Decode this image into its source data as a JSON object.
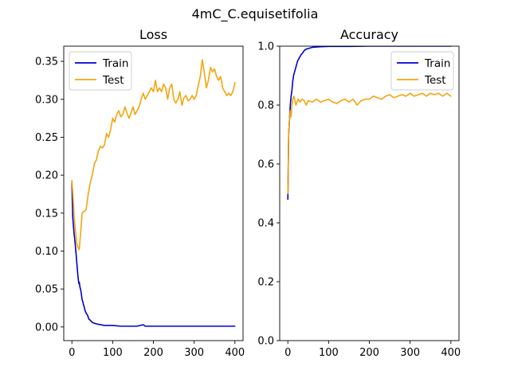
{
  "figure": {
    "suptitle": "4mC_C.equisetifolia"
  },
  "chart_data": [
    {
      "type": "line",
      "title": "Loss",
      "xlabel": "",
      "ylabel": "",
      "xlim": [
        -20,
        420
      ],
      "ylim": [
        -0.018,
        0.37
      ],
      "xticks": [
        0,
        100,
        200,
        300,
        400
      ],
      "yticks": [
        0.0,
        0.05,
        0.1,
        0.15,
        0.2,
        0.25,
        0.3,
        0.35
      ],
      "ytick_labels": [
        "0.00",
        "0.05",
        "0.10",
        "0.15",
        "0.20",
        "0.25",
        "0.30",
        "0.35"
      ],
      "legend": "upper-left",
      "grid": false,
      "series": [
        {
          "name": "Train",
          "color": "#0000cd",
          "x": [
            0,
            2,
            5,
            8,
            10,
            12,
            14,
            15,
            17,
            18,
            20,
            22,
            24,
            25,
            27,
            28,
            30,
            32,
            35,
            38,
            40,
            42,
            45,
            48,
            50,
            55,
            60,
            70,
            80,
            90,
            100,
            120,
            140,
            160,
            175,
            180,
            200,
            220,
            240,
            260,
            280,
            300,
            320,
            340,
            360,
            380,
            400
          ],
          "y": [
            0.19,
            0.145,
            0.125,
            0.11,
            0.098,
            0.085,
            0.072,
            0.066,
            0.057,
            0.059,
            0.052,
            0.048,
            0.04,
            0.036,
            0.033,
            0.03,
            0.027,
            0.022,
            0.018,
            0.016,
            0.013,
            0.01,
            0.009,
            0.007,
            0.006,
            0.005,
            0.004,
            0.003,
            0.002,
            0.002,
            0.002,
            0.001,
            0.001,
            0.001,
            0.003,
            0.001,
            0.001,
            0.001,
            0.001,
            0.001,
            0.001,
            0.001,
            0.001,
            0.001,
            0.001,
            0.001,
            0.001
          ]
        },
        {
          "name": "Test",
          "color": "#f4a40e",
          "x": [
            0,
            3,
            5,
            8,
            10,
            12,
            15,
            18,
            20,
            23,
            25,
            28,
            30,
            35,
            40,
            45,
            50,
            55,
            60,
            65,
            70,
            75,
            80,
            85,
            90,
            95,
            100,
            105,
            110,
            115,
            120,
            125,
            130,
            135,
            140,
            145,
            150,
            155,
            160,
            165,
            170,
            175,
            180,
            185,
            190,
            195,
            200,
            205,
            210,
            215,
            220,
            225,
            230,
            235,
            240,
            245,
            250,
            255,
            260,
            265,
            270,
            275,
            280,
            285,
            290,
            295,
            300,
            305,
            310,
            315,
            320,
            325,
            330,
            335,
            340,
            345,
            350,
            355,
            360,
            365,
            370,
            375,
            380,
            385,
            390,
            395,
            400
          ],
          "y": [
            0.193,
            0.17,
            0.15,
            0.13,
            0.12,
            0.11,
            0.105,
            0.102,
            0.115,
            0.135,
            0.15,
            0.152,
            0.152,
            0.155,
            0.175,
            0.19,
            0.2,
            0.215,
            0.22,
            0.232,
            0.238,
            0.236,
            0.24,
            0.255,
            0.25,
            0.26,
            0.275,
            0.27,
            0.28,
            0.285,
            0.277,
            0.28,
            0.29,
            0.282,
            0.275,
            0.282,
            0.29,
            0.28,
            0.285,
            0.29,
            0.3,
            0.308,
            0.3,
            0.305,
            0.31,
            0.315,
            0.31,
            0.325,
            0.31,
            0.315,
            0.31,
            0.32,
            0.315,
            0.3,
            0.315,
            0.32,
            0.3,
            0.295,
            0.3,
            0.31,
            0.292,
            0.302,
            0.305,
            0.298,
            0.3,
            0.305,
            0.3,
            0.305,
            0.318,
            0.33,
            0.352,
            0.335,
            0.315,
            0.325,
            0.342,
            0.336,
            0.34,
            0.33,
            0.325,
            0.33,
            0.315,
            0.31,
            0.305,
            0.308,
            0.305,
            0.31,
            0.322
          ]
        }
      ]
    },
    {
      "type": "line",
      "title": "Accuracy",
      "xlabel": "",
      "ylabel": "",
      "xlim": [
        -20,
        420
      ],
      "ylim": [
        0.0,
        1.0
      ],
      "xticks": [
        0,
        100,
        200,
        300,
        400
      ],
      "yticks": [
        0.0,
        0.2,
        0.4,
        0.6,
        0.8,
        1.0
      ],
      "ytick_labels": [
        "0.0",
        "0.2",
        "0.4",
        "0.6",
        "0.8",
        "1.0"
      ],
      "legend": "upper-right",
      "grid": false,
      "series": [
        {
          "name": "Train",
          "color": "#0000cd",
          "x": [
            0,
            2,
            4,
            6,
            8,
            10,
            12,
            14,
            16,
            18,
            20,
            22,
            24,
            26,
            28,
            30,
            32,
            35,
            38,
            40,
            45,
            50,
            55,
            60,
            70,
            80,
            100,
            120,
            150,
            200,
            250,
            300,
            350,
            400
          ],
          "y": [
            0.48,
            0.7,
            0.75,
            0.8,
            0.83,
            0.85,
            0.88,
            0.9,
            0.91,
            0.92,
            0.93,
            0.94,
            0.95,
            0.955,
            0.96,
            0.965,
            0.97,
            0.975,
            0.98,
            0.985,
            0.99,
            0.992,
            0.994,
            0.996,
            0.997,
            0.998,
            0.999,
            0.999,
            0.999,
            1.0,
            1.0,
            1.0,
            1.0,
            1.0
          ]
        },
        {
          "name": "Test",
          "color": "#f4a40e",
          "x": [
            0,
            2,
            4,
            6,
            8,
            10,
            12,
            15,
            18,
            20,
            25,
            30,
            35,
            40,
            45,
            50,
            60,
            70,
            80,
            90,
            100,
            110,
            120,
            130,
            140,
            150,
            160,
            170,
            180,
            190,
            200,
            210,
            220,
            230,
            240,
            250,
            260,
            270,
            280,
            290,
            300,
            310,
            320,
            330,
            340,
            350,
            360,
            370,
            380,
            390,
            400
          ],
          "y": [
            0.5,
            0.7,
            0.75,
            0.78,
            0.76,
            0.8,
            0.82,
            0.83,
            0.81,
            0.8,
            0.82,
            0.81,
            0.82,
            0.815,
            0.8,
            0.815,
            0.81,
            0.82,
            0.81,
            0.815,
            0.82,
            0.81,
            0.805,
            0.815,
            0.82,
            0.81,
            0.82,
            0.8,
            0.815,
            0.82,
            0.82,
            0.83,
            0.825,
            0.82,
            0.83,
            0.835,
            0.825,
            0.83,
            0.835,
            0.83,
            0.84,
            0.83,
            0.835,
            0.84,
            0.83,
            0.84,
            0.835,
            0.84,
            0.83,
            0.84,
            0.83
          ]
        }
      ]
    }
  ]
}
